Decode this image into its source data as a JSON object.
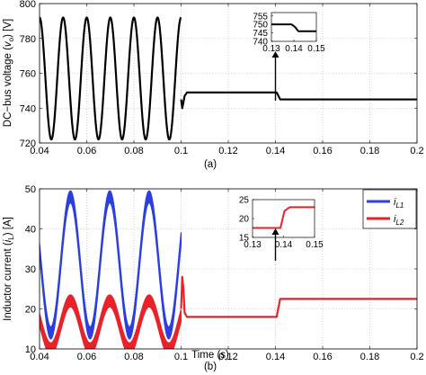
{
  "chart_data": [
    {
      "panel": "a",
      "type": "line",
      "caption": "(a)",
      "ylabel_prefix": "DC−bus voltage (",
      "ylabel_var": "v",
      "ylabel_sub": "o",
      "ylabel_suffix": ") [V]",
      "xlim": [
        0.04,
        0.2
      ],
      "ylim": [
        720,
        800
      ],
      "xticks": [
        "0.04",
        "0.06",
        "0.08",
        "0.1",
        "0.12",
        "0.14",
        "0.16",
        "0.18",
        "0.2"
      ],
      "yticks": [
        "720",
        "740",
        "760",
        "780",
        "800"
      ],
      "grid": true,
      "series": [
        {
          "color": "#000000",
          "segments": [
            {
              "kind": "sine",
              "x_start": 0.04,
              "x_end": 0.1,
              "offset": 757,
              "amplitude": 35,
              "freq_hz": 100,
              "phase": 1.571
            },
            {
              "kind": "points",
              "x": [
                0.1,
                0.1005,
                0.1015,
                0.1025,
                0.104,
                0.139,
                0.1405,
                0.142,
                0.2
              ],
              "y": [
                745,
                740,
                747,
                749,
                749,
                749,
                749,
                745,
                745
              ]
            }
          ]
        }
      ],
      "inset": {
        "xlim": [
          0.13,
          0.15
        ],
        "ylim": [
          740,
          757
        ],
        "xticks": [
          "0.13",
          "0.14",
          "0.15"
        ],
        "yticks": [
          "740",
          "745",
          "750",
          "755"
        ],
        "x": [
          0.13,
          0.139,
          0.1405,
          0.142,
          0.15
        ],
        "y": [
          750,
          750,
          748.5,
          746,
          746
        ]
      }
    },
    {
      "panel": "b",
      "type": "line",
      "caption": "(b)",
      "xlabel": "Time (s)",
      "ylabel_prefix": "Inductor current (",
      "ylabel_var": "i",
      "ylabel_sub": "L",
      "ylabel_suffix": ") [A]",
      "xlim": [
        0.04,
        0.2
      ],
      "ylim": [
        10,
        50
      ],
      "xticks": [
        "0.04",
        "0.06",
        "0.08",
        "0.1",
        "0.12",
        "0.14",
        "0.16",
        "0.18",
        "0.2"
      ],
      "yticks": [
        "10",
        "20",
        "30",
        "40",
        "50"
      ],
      "grid": true,
      "legend_position": "top-right",
      "series": [
        {
          "name_var": "i",
          "name_sub": "L1",
          "color": "#2b3fe0",
          "segments": [
            {
              "kind": "sine",
              "x_start": 0.04,
              "x_end": 0.1,
              "offset": 31,
              "amplitude": 17,
              "freq_hz": 60,
              "phase": 0.4,
              "band": 3
            }
          ]
        },
        {
          "name_var": "i",
          "name_sub": "L2",
          "color": "#e8222a",
          "segments": [
            {
              "kind": "sine",
              "x_start": 0.04,
              "x_end": 0.1,
              "offset": 16,
              "amplitude": 6,
              "freq_hz": 60,
              "phase": 0.4,
              "band": 3
            },
            {
              "kind": "points",
              "x": [
                0.1,
                0.1005,
                0.101,
                0.1015,
                0.1025,
                0.139,
                0.1405,
                0.142,
                0.2
              ],
              "y": [
                20,
                28,
                25,
                19,
                18,
                18,
                18,
                22.5,
                22.5
              ]
            }
          ]
        }
      ],
      "inset": {
        "xlim": [
          0.13,
          0.15
        ],
        "ylim": [
          15,
          25
        ],
        "xticks": [
          "0.13",
          "0.14",
          "0.15"
        ],
        "yticks": [
          "15",
          "20",
          "25"
        ],
        "x": [
          0.13,
          0.139,
          0.1403,
          0.142,
          0.15
        ],
        "y": [
          17.5,
          17.5,
          22,
          23,
          23
        ]
      }
    }
  ]
}
